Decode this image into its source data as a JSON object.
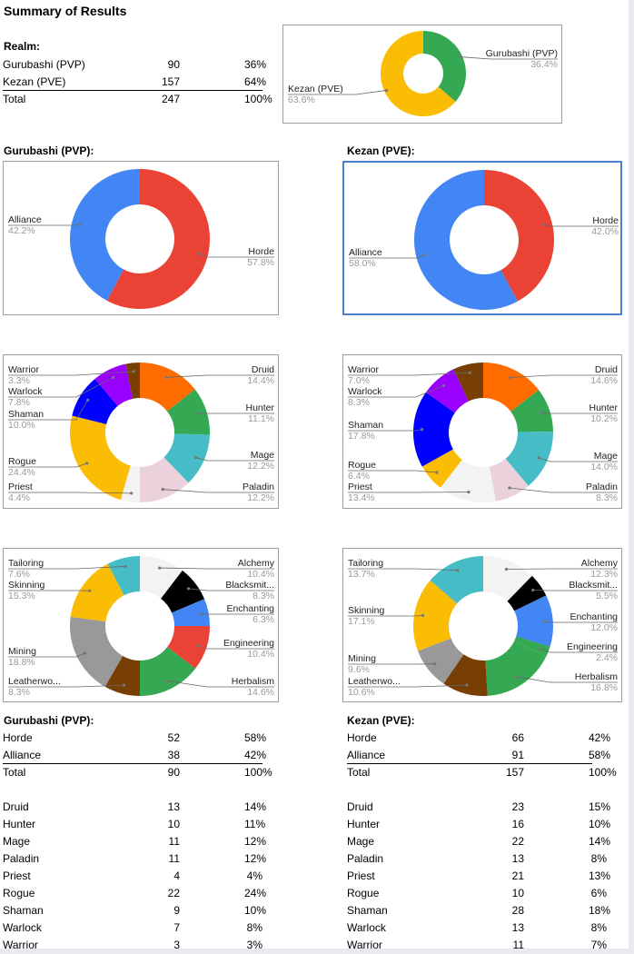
{
  "page": {
    "title": "Summary of Results",
    "realm_heading": "Realm:",
    "gurubashi_heading": "Gurubashi (PVP):",
    "kezan_heading": "Kezan (PVE):"
  },
  "realm_table": [
    {
      "label": "Gurubashi (PVP)",
      "count": "90",
      "pct": "36%"
    },
    {
      "label": "Kezan (PVE)",
      "count": "157",
      "pct": "64%"
    },
    {
      "label": "Total",
      "count": "247",
      "pct": "100%"
    }
  ],
  "gurubashi_faction_table": [
    {
      "label": "Horde",
      "count": "52",
      "pct": "58%"
    },
    {
      "label": "Alliance",
      "count": "38",
      "pct": "42%"
    },
    {
      "label": "Total",
      "count": "90",
      "pct": "100%"
    }
  ],
  "kezan_faction_table": [
    {
      "label": "Horde",
      "count": "66",
      "pct": "42%"
    },
    {
      "label": "Alliance",
      "count": "91",
      "pct": "58%"
    },
    {
      "label": "Total",
      "count": "157",
      "pct": "100%"
    }
  ],
  "gurubashi_class_table": [
    {
      "label": "Druid",
      "count": "13",
      "pct": "14%"
    },
    {
      "label": "Hunter",
      "count": "10",
      "pct": "11%"
    },
    {
      "label": "Mage",
      "count": "11",
      "pct": "12%"
    },
    {
      "label": "Paladin",
      "count": "11",
      "pct": "12%"
    },
    {
      "label": "Priest",
      "count": "4",
      "pct": "4%"
    },
    {
      "label": "Rogue",
      "count": "22",
      "pct": "24%"
    },
    {
      "label": "Shaman",
      "count": "9",
      "pct": "10%"
    },
    {
      "label": "Warlock",
      "count": "7",
      "pct": "8%"
    },
    {
      "label": "Warrior",
      "count": "3",
      "pct": "3%"
    }
  ],
  "kezan_class_table": [
    {
      "label": "Druid",
      "count": "23",
      "pct": "15%"
    },
    {
      "label": "Hunter",
      "count": "16",
      "pct": "10%"
    },
    {
      "label": "Mage",
      "count": "22",
      "pct": "14%"
    },
    {
      "label": "Paladin",
      "count": "13",
      "pct": "8%"
    },
    {
      "label": "Priest",
      "count": "21",
      "pct": "13%"
    },
    {
      "label": "Rogue",
      "count": "10",
      "pct": "6%"
    },
    {
      "label": "Shaman",
      "count": "28",
      "pct": "18%"
    },
    {
      "label": "Warlock",
      "count": "13",
      "pct": "8%"
    },
    {
      "label": "Warrior",
      "count": "11",
      "pct": "7%"
    }
  ],
  "chart_data": [
    {
      "id": "realm",
      "type": "pie",
      "donut": true,
      "slices": [
        {
          "label": "Gurubashi (PVP)",
          "value": 36.4,
          "pct_label": "36.4%",
          "color": "#34a853"
        },
        {
          "label": "Kezan (PVE)",
          "value": 63.6,
          "pct_label": "63.6%",
          "color": "#fbbc04"
        }
      ]
    },
    {
      "id": "gurubashi_faction",
      "type": "pie",
      "donut": true,
      "slices": [
        {
          "label": "Horde",
          "value": 57.8,
          "pct_label": "57.8%",
          "color": "#ea4335"
        },
        {
          "label": "Alliance",
          "value": 42.2,
          "pct_label": "42.2%",
          "color": "#4285f4"
        }
      ]
    },
    {
      "id": "kezan_faction",
      "type": "pie",
      "donut": true,
      "slices": [
        {
          "label": "Horde",
          "value": 42.0,
          "pct_label": "42.0%",
          "color": "#ea4335"
        },
        {
          "label": "Alliance",
          "value": 58.0,
          "pct_label": "58.0%",
          "color": "#4285f4"
        }
      ]
    },
    {
      "id": "gurubashi_class",
      "type": "pie",
      "donut": true,
      "slices": [
        {
          "label": "Druid",
          "value": 14.4,
          "pct_label": "14.4%",
          "color": "#ff6d01"
        },
        {
          "label": "Hunter",
          "value": 11.1,
          "pct_label": "11.1%",
          "color": "#34a853"
        },
        {
          "label": "Mage",
          "value": 12.2,
          "pct_label": "12.2%",
          "color": "#46bdc6"
        },
        {
          "label": "Paladin",
          "value": 12.2,
          "pct_label": "12.2%",
          "color": "#ead1dc"
        },
        {
          "label": "Priest",
          "value": 4.4,
          "pct_label": "4.4%",
          "color": "#f3f3f3"
        },
        {
          "label": "Rogue",
          "value": 24.4,
          "pct_label": "24.4%",
          "color": "#fbbc04"
        },
        {
          "label": "Shaman",
          "value": 10.0,
          "pct_label": "10.0%",
          "color": "#0000ff"
        },
        {
          "label": "Warlock",
          "value": 7.8,
          "pct_label": "7.8%",
          "color": "#9900ff"
        },
        {
          "label": "Warrior",
          "value": 3.3,
          "pct_label": "3.3%",
          "color": "#783f04"
        }
      ]
    },
    {
      "id": "kezan_class",
      "type": "pie",
      "donut": true,
      "slices": [
        {
          "label": "Druid",
          "value": 14.6,
          "pct_label": "14.6%",
          "color": "#ff6d01"
        },
        {
          "label": "Hunter",
          "value": 10.2,
          "pct_label": "10.2%",
          "color": "#34a853"
        },
        {
          "label": "Mage",
          "value": 14.0,
          "pct_label": "14.0%",
          "color": "#46bdc6"
        },
        {
          "label": "Paladin",
          "value": 8.3,
          "pct_label": "8.3%",
          "color": "#ead1dc"
        },
        {
          "label": "Priest",
          "value": 13.4,
          "pct_label": "13.4%",
          "color": "#f3f3f3"
        },
        {
          "label": "Rogue",
          "value": 6.4,
          "pct_label": "6.4%",
          "color": "#fbbc04"
        },
        {
          "label": "Shaman",
          "value": 17.8,
          "pct_label": "17.8%",
          "color": "#0000ff"
        },
        {
          "label": "Warlock",
          "value": 8.3,
          "pct_label": "8.3%",
          "color": "#9900ff"
        },
        {
          "label": "Warrior",
          "value": 7.0,
          "pct_label": "7.0%",
          "color": "#783f04"
        }
      ]
    },
    {
      "id": "gurubashi_prof",
      "type": "pie",
      "donut": true,
      "slices": [
        {
          "label": "Alchemy",
          "value": 10.4,
          "pct_label": "10.4%",
          "color": "#f3f3f3"
        },
        {
          "label": "Blacksmit...",
          "value": 8.3,
          "pct_label": "8.3%",
          "color": "#000000"
        },
        {
          "label": "Enchanting",
          "value": 6.3,
          "pct_label": "6.3%",
          "color": "#4285f4"
        },
        {
          "label": "Engineering",
          "value": 10.4,
          "pct_label": "10.4%",
          "color": "#ea4335"
        },
        {
          "label": "Herbalism",
          "value": 14.6,
          "pct_label": "14.6%",
          "color": "#34a853"
        },
        {
          "label": "Leatherwo...",
          "value": 8.3,
          "pct_label": "8.3%",
          "color": "#783f04"
        },
        {
          "label": "Mining",
          "value": 18.8,
          "pct_label": "18.8%",
          "color": "#999999"
        },
        {
          "label": "Skinning",
          "value": 15.3,
          "pct_label": "15.3%",
          "color": "#fbbc04"
        },
        {
          "label": "Tailoring",
          "value": 7.6,
          "pct_label": "7.6%",
          "color": "#46bdc6"
        }
      ]
    },
    {
      "id": "kezan_prof",
      "type": "pie",
      "donut": true,
      "slices": [
        {
          "label": "Alchemy",
          "value": 12.3,
          "pct_label": "12.3%",
          "color": "#f3f3f3"
        },
        {
          "label": "Blacksmit...",
          "value": 5.5,
          "pct_label": "5.5%",
          "color": "#000000"
        },
        {
          "label": "Enchanting",
          "value": 12.0,
          "pct_label": "12.0%",
          "color": "#4285f4"
        },
        {
          "label": "Engineering",
          "value": 2.4,
          "pct_label": "2.4%",
          "color": "#34a853"
        },
        {
          "label": "Herbalism",
          "value": 16.8,
          "pct_label": "16.8%",
          "color": "#34a853"
        },
        {
          "label": "Leatherwo...",
          "value": 10.6,
          "pct_label": "10.6%",
          "color": "#783f04"
        },
        {
          "label": "Mining",
          "value": 9.6,
          "pct_label": "9.6%",
          "color": "#999999"
        },
        {
          "label": "Skinning",
          "value": 17.1,
          "pct_label": "17.1%",
          "color": "#fbbc04"
        },
        {
          "label": "Tailoring",
          "value": 13.7,
          "pct_label": "13.7%",
          "color": "#46bdc6"
        }
      ]
    }
  ]
}
